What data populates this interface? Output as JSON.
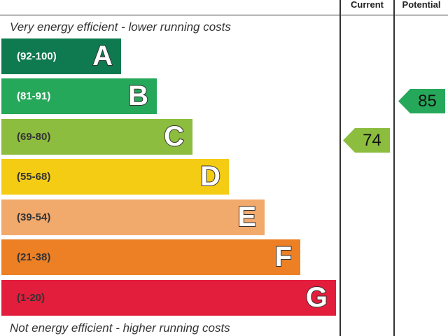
{
  "header": {
    "current_label": "Current",
    "potential_label": "Potential"
  },
  "captions": {
    "top": "Very energy efficient - lower running costs",
    "bottom": "Not energy efficient - higher running costs"
  },
  "bands": [
    {
      "range": "(92-100)",
      "letter": "A",
      "color": "#0f7a4f",
      "text_color": "#ffffff"
    },
    {
      "range": "(81-91)",
      "letter": "B",
      "color": "#26a85a",
      "text_color": "#ffffff"
    },
    {
      "range": "(69-80)",
      "letter": "C",
      "color": "#8cbd3f",
      "text_color": "#333333"
    },
    {
      "range": "(55-68)",
      "letter": "D",
      "color": "#f5cc14",
      "text_color": "#333333"
    },
    {
      "range": "(39-54)",
      "letter": "E",
      "color": "#f2a96c",
      "text_color": "#333333"
    },
    {
      "range": "(21-38)",
      "letter": "F",
      "color": "#ed8025",
      "text_color": "#333333"
    },
    {
      "range": "(1-20)",
      "letter": "G",
      "color": "#e31d3c",
      "text_color": "#333333"
    }
  ],
  "ratings": {
    "current": {
      "value": "74",
      "color": "#8cbd3f"
    },
    "potential": {
      "value": "85",
      "color": "#26a85a"
    }
  }
}
